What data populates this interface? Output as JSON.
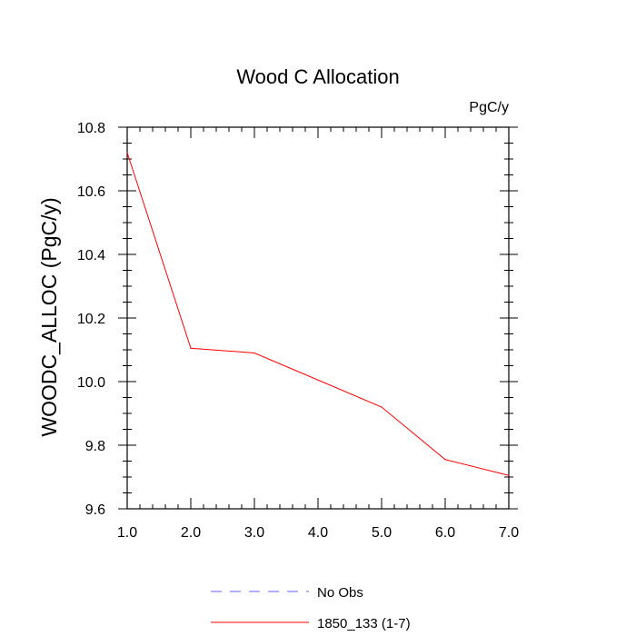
{
  "chart_data": {
    "type": "line",
    "title": "Wood C Allocation",
    "units_label": "PgC/y",
    "ylabel": "WOODC_ALLOC  (PgC/y)",
    "xlabel": "",
    "xlim": [
      1.0,
      7.0
    ],
    "ylim": [
      9.6,
      10.8
    ],
    "x_ticks": [
      "1.0",
      "2.0",
      "3.0",
      "4.0",
      "5.0",
      "6.0",
      "7.0"
    ],
    "y_ticks": [
      "9.6",
      "9.8",
      "10.0",
      "10.2",
      "10.4",
      "10.6",
      "10.8"
    ],
    "series": [
      {
        "name": "1850_133 (1-7)",
        "color": "#ff0000",
        "x": [
          1,
          2,
          3,
          4,
          5,
          6,
          7
        ],
        "values": [
          10.72,
          10.105,
          10.09,
          10.005,
          9.92,
          9.755,
          9.705
        ]
      }
    ],
    "legend": {
      "placement": "bottom",
      "entries": [
        {
          "label": "No Obs",
          "color": "#6060ff",
          "style": "dashed"
        },
        {
          "label": "1850_133 (1-7)",
          "color": "#ff0000",
          "style": "solid"
        }
      ]
    }
  }
}
